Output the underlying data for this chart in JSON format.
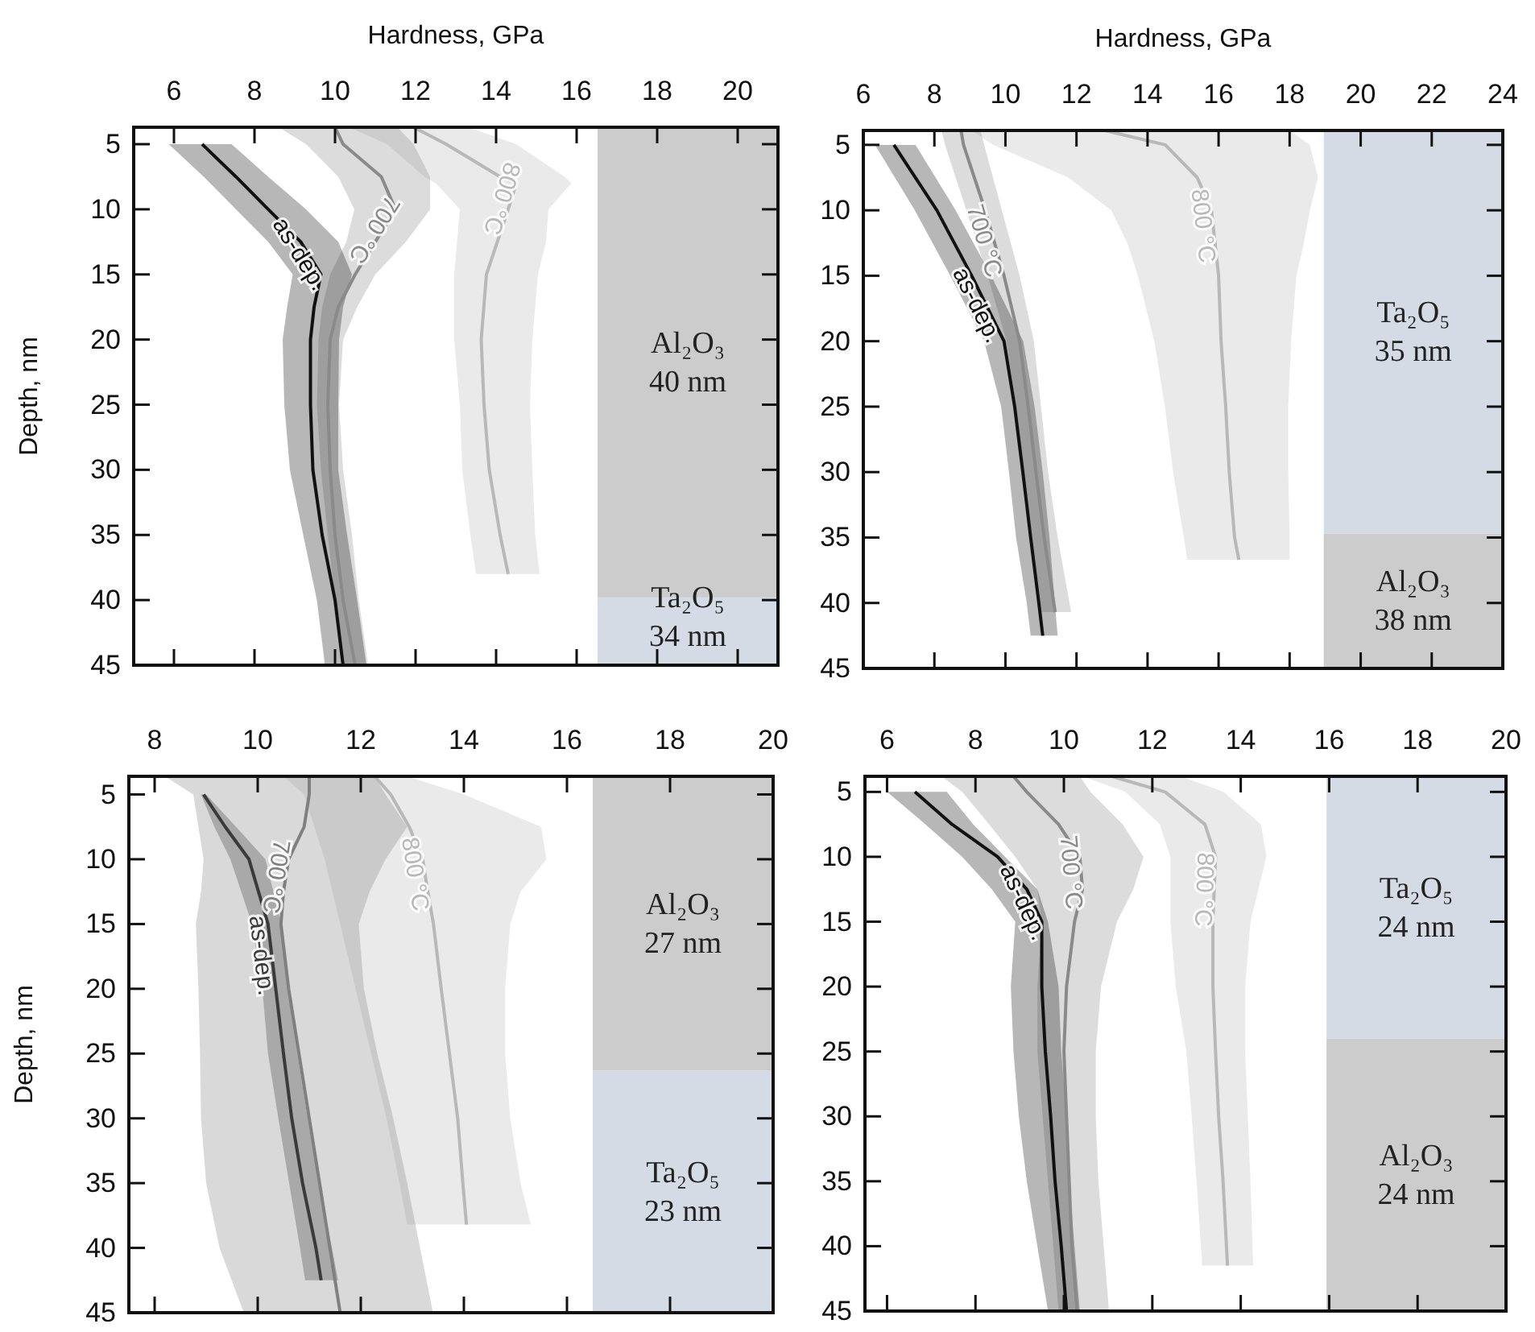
{
  "chart_data": [
    {
      "type": "line",
      "orientation": "horizontal",
      "xlabel": "Hardness, GPa",
      "ylabel": "Depth, nm",
      "xlim": [
        5,
        21
      ],
      "xticks": [
        6,
        8,
        10,
        12,
        14,
        16,
        18,
        20
      ],
      "ylim": [
        45,
        3.7
      ],
      "yticks": [
        5,
        10,
        15,
        20,
        25,
        30,
        35,
        40,
        45
      ],
      "bands": [
        {
          "axis": "y",
          "from": 3.7,
          "to": 39.8,
          "label": "Al₂O₃\n40 nm",
          "color": "#cccccc"
        },
        {
          "axis": "y",
          "from": 39.8,
          "to": 45,
          "label": "Ta₂O₅\n34 nm",
          "color": "#d5dbe5"
        }
      ],
      "series": [
        {
          "name": "as-dep.",
          "color": "#111111",
          "x": [
            5,
            7.5,
            10,
            12.5,
            15,
            17.5,
            20,
            25,
            30,
            35,
            40,
            45
          ],
          "values": [
            6.7,
            7.54,
            8.34,
            9.15,
            9.65,
            9.48,
            9.39,
            9.39,
            9.45,
            9.68,
            10.0,
            10.2
          ],
          "lower": [
            5.87,
            6.74,
            7.54,
            8.34,
            8.95,
            8.81,
            8.7,
            8.74,
            8.88,
            9.21,
            9.55,
            9.75
          ],
          "upper": [
            7.43,
            8.34,
            9.28,
            10.08,
            10.42,
            10.2,
            10.1,
            10.08,
            10.08,
            10.3,
            10.55,
            10.78
          ]
        },
        {
          "name": "700 °C",
          "color": "#8a8a8a",
          "x": [
            3.7,
            5,
            7.5,
            10,
            12.5,
            15,
            17.5,
            20,
            25,
            30,
            35,
            40,
            45
          ],
          "values": [
            10.0,
            10.2,
            11.15,
            11.5,
            11.0,
            10.5,
            10.08,
            9.88,
            9.82,
            9.88,
            10.0,
            10.2,
            10.5
          ],
          "lower": [
            8.6,
            9.28,
            10.08,
            10.48,
            10.28,
            9.88,
            9.68,
            9.59,
            9.55,
            9.65,
            9.82,
            10.0,
            10.2
          ],
          "upper": [
            11.55,
            11.95,
            12.36,
            12.36,
            11.76,
            11.0,
            10.55,
            10.2,
            10.1,
            10.2,
            10.42,
            10.59,
            10.82
          ]
        },
        {
          "name": "800 °C",
          "color": "#b8b8b8",
          "x": [
            3.7,
            5,
            7.5,
            8,
            10,
            12.5,
            15,
            20,
            25,
            30,
            35,
            38
          ],
          "values": [
            11.95,
            12.76,
            14.1,
            14.5,
            14.3,
            14.03,
            13.76,
            13.63,
            13.7,
            13.83,
            14.1,
            14.3
          ],
          "lower": [
            10.35,
            11.29,
            12.22,
            12.5,
            13.1,
            13.03,
            12.96,
            12.96,
            13.1,
            13.16,
            13.36,
            13.5
          ],
          "upper": [
            13.3,
            14.5,
            15.7,
            15.87,
            15.3,
            15.24,
            15.04,
            14.9,
            14.84,
            14.9,
            14.97,
            15.08
          ]
        }
      ]
    },
    {
      "type": "line",
      "orientation": "horizontal",
      "xlabel": "Hardness, GPa",
      "xlim": [
        6,
        24
      ],
      "xticks": [
        6,
        8,
        10,
        12,
        14,
        16,
        18,
        20,
        22,
        24
      ],
      "ylim": [
        45,
        3.9
      ],
      "yticks": [
        5,
        10,
        15,
        20,
        25,
        30,
        35,
        40,
        45
      ],
      "bands": [
        {
          "axis": "y",
          "from": 3.9,
          "to": 34.7,
          "label": "Ta₂O₅\n35 nm",
          "color": "#d5dbe5"
        },
        {
          "axis": "y",
          "from": 34.7,
          "to": 45,
          "label": "Al₂O₃\n38 nm",
          "color": "#cccccc"
        }
      ],
      "series": [
        {
          "name": "as-dep.",
          "color": "#111111",
          "x": [
            5,
            10,
            15,
            20,
            25,
            30,
            35,
            40,
            42.5
          ],
          "values": [
            6.86,
            8.07,
            9.05,
            9.96,
            10.26,
            10.49,
            10.71,
            10.94,
            11.05
          ],
          "lower": [
            6.33,
            7.45,
            8.45,
            9.4,
            9.88,
            10.1,
            10.3,
            10.6,
            10.71
          ],
          "upper": [
            7.47,
            8.6,
            9.6,
            10.5,
            10.82,
            11.05,
            11.24,
            11.39,
            11.47
          ]
        },
        {
          "name": "700 °C",
          "color": "#8a8a8a",
          "x": [
            3.9,
            5,
            10,
            15,
            20,
            25,
            30,
            35,
            40.7
          ],
          "values": [
            8.75,
            8.82,
            9.43,
            9.96,
            10.4,
            10.64,
            10.86,
            11.09,
            11.4
          ],
          "lower": [
            8.2,
            8.3,
            8.9,
            9.5,
            10.03,
            10.3,
            10.5,
            10.71,
            11.0
          ],
          "upper": [
            9.3,
            9.4,
            9.9,
            10.4,
            10.8,
            11.0,
            11.2,
            11.47,
            11.85
          ]
        },
        {
          "name": "800 °C",
          "color": "#b8b8b8",
          "x": [
            3.9,
            5,
            7.5,
            10,
            12.5,
            15,
            20,
            25,
            30,
            35,
            36.7
          ],
          "values": [
            12.8,
            14.5,
            15.4,
            15.8,
            15.9,
            16.0,
            16.07,
            16.2,
            16.3,
            16.45,
            16.57
          ],
          "lower": [
            9.05,
            9.66,
            11.77,
            12.98,
            13.43,
            13.73,
            14.19,
            14.49,
            14.72,
            15.02,
            15.12
          ],
          "upper": [
            18.0,
            18.57,
            18.8,
            18.57,
            18.4,
            18.19,
            18.04,
            17.96,
            17.96,
            18.0,
            18.0
          ]
        }
      ]
    },
    {
      "type": "line",
      "orientation": "horizontal",
      "ylabel": "Depth, nm",
      "xlim": [
        7.5,
        20
      ],
      "xticks": [
        8,
        10,
        12,
        14,
        16,
        18,
        20
      ],
      "ylim": [
        45,
        3.6
      ],
      "yticks": [
        5,
        10,
        15,
        20,
        25,
        30,
        35,
        40,
        45
      ],
      "bands": [
        {
          "axis": "y",
          "from": 3.6,
          "to": 26.3,
          "label": "Al₂O₃\n27 nm",
          "color": "#cccccc"
        },
        {
          "axis": "y",
          "from": 26.3,
          "to": 45,
          "label": "Ta₂O₅\n23 nm",
          "color": "#d5dbe5"
        }
      ],
      "series": [
        {
          "name": "as-dep.",
          "color": "#3a3a3a",
          "x": [
            5,
            7.5,
            10,
            15,
            20,
            25,
            30,
            35,
            40,
            42.5
          ],
          "values": [
            8.95,
            9.37,
            9.83,
            10.2,
            10.35,
            10.5,
            10.66,
            10.87,
            11.13,
            11.23
          ],
          "lower": [
            8.9,
            9.16,
            9.47,
            9.89,
            10.09,
            10.2,
            10.4,
            10.61,
            10.82,
            10.92
          ],
          "upper": [
            9.0,
            9.58,
            10.15,
            10.46,
            10.61,
            10.77,
            10.97,
            11.18,
            11.44,
            11.56
          ]
        },
        {
          "name": "700 °C",
          "color": "#808080",
          "x": [
            3.6,
            5,
            7.5,
            10,
            12.5,
            15,
            20,
            25,
            30,
            35,
            40,
            45
          ],
          "values": [
            11.0,
            11.0,
            10.9,
            10.6,
            10.5,
            10.45,
            10.6,
            10.8,
            11.0,
            11.2,
            11.4,
            11.6
          ],
          "lower": [
            8.2,
            8.75,
            8.85,
            8.95,
            8.9,
            8.8,
            8.85,
            8.88,
            8.9,
            9.0,
            9.26,
            9.73
          ],
          "upper": [
            12.27,
            12.48,
            12.9,
            12.48,
            12.17,
            11.96,
            12.06,
            12.32,
            12.63,
            12.9,
            13.15,
            13.4
          ]
        },
        {
          "name": "800 °C",
          "color": "#b8b8b8",
          "x": [
            3.6,
            5,
            7.5,
            10,
            12.5,
            15,
            20,
            25,
            30,
            35,
            38.2
          ],
          "values": [
            12.27,
            12.58,
            12.94,
            13.2,
            13.3,
            13.41,
            13.56,
            13.72,
            13.88,
            13.98,
            14.05
          ],
          "lower": [
            10.5,
            10.9,
            11.1,
            11.3,
            11.45,
            11.6,
            11.9,
            12.2,
            12.5,
            12.75,
            12.9
          ],
          "upper": [
            12.9,
            14.0,
            15.5,
            15.6,
            15.1,
            14.9,
            14.8,
            14.8,
            14.9,
            15.1,
            15.3
          ]
        }
      ]
    },
    {
      "type": "line",
      "orientation": "horizontal",
      "xlim": [
        5.5,
        20
      ],
      "xticks": [
        6,
        8,
        10,
        12,
        14,
        16,
        18,
        20
      ],
      "ylim": [
        45,
        3.8
      ],
      "yticks": [
        5,
        10,
        15,
        20,
        25,
        30,
        35,
        40,
        45
      ],
      "bands": [
        {
          "axis": "y",
          "from": 3.8,
          "to": 24,
          "label": "Ta₂O₅\n24 nm",
          "color": "#d5dbe5"
        },
        {
          "axis": "y",
          "from": 24,
          "to": 45,
          "label": "Al₂O₃\n24 nm",
          "color": "#cccccc"
        }
      ],
      "series": [
        {
          "name": "as-dep.",
          "color": "#111111",
          "x": [
            5,
            7.5,
            10,
            12.5,
            15,
            20,
            25,
            30,
            35,
            40,
            45
          ],
          "values": [
            6.63,
            7.47,
            8.5,
            9.16,
            9.5,
            9.5,
            9.58,
            9.7,
            9.8,
            9.94,
            10.06
          ],
          "lower": [
            6.0,
            6.87,
            7.7,
            8.37,
            8.9,
            8.8,
            8.86,
            8.98,
            9.16,
            9.4,
            9.64
          ],
          "upper": [
            7.35,
            7.95,
            8.67,
            9.4,
            9.64,
            9.88,
            9.94,
            10.06,
            10.12,
            10.24,
            10.36
          ]
        },
        {
          "name": "700 °C",
          "color": "#8a8a8a",
          "x": [
            3.8,
            5,
            7.5,
            10,
            12.5,
            15,
            20,
            25,
            30,
            35,
            40,
            45
          ],
          "values": [
            8.86,
            9.16,
            9.88,
            10.36,
            10.42,
            10.24,
            10.06,
            10.0,
            10.06,
            10.12,
            10.18,
            10.3
          ],
          "lower": [
            7.23,
            7.7,
            8.31,
            8.9,
            9.4,
            9.5,
            9.4,
            9.4,
            9.52,
            9.64,
            9.76,
            9.88
          ],
          "upper": [
            10.36,
            10.6,
            11.33,
            11.8,
            11.57,
            11.2,
            10.84,
            10.72,
            10.72,
            10.78,
            10.9,
            11.02
          ]
        },
        {
          "name": "800 °C",
          "color": "#b8b8b8",
          "x": [
            3.8,
            5,
            7.5,
            10,
            15,
            20,
            25,
            30,
            35,
            41.5
          ],
          "values": [
            11.08,
            12.29,
            13.19,
            13.43,
            13.37,
            13.37,
            13.43,
            13.5,
            13.6,
            13.7
          ],
          "lower": [
            10.42,
            11.39,
            12.17,
            12.41,
            12.41,
            12.53,
            12.77,
            12.89,
            13.0,
            13.13
          ],
          "upper": [
            12.65,
            13.61,
            14.46,
            14.58,
            14.22,
            14.1,
            14.1,
            14.16,
            14.22,
            14.28
          ]
        }
      ]
    }
  ]
}
